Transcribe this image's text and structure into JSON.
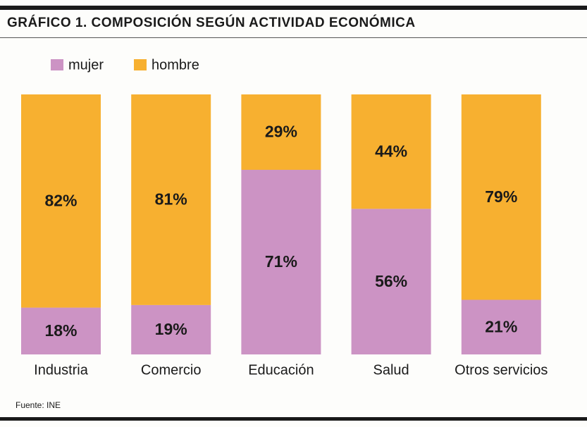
{
  "chart_data": {
    "type": "stacked_bar",
    "title": "GRÁFICO 1. COMPOSICIÓN SEGÚN ACTIVIDAD ECONÓMICA",
    "categories": [
      "Industria",
      "Comercio",
      "Educación",
      "Salud",
      "Otros servicios"
    ],
    "series": [
      {
        "name": "mujer",
        "color": "#cc93c4",
        "values": [
          18,
          19,
          71,
          56,
          21
        ],
        "value_labels": [
          "18%",
          "19%",
          "71%",
          "56%",
          "21%"
        ]
      },
      {
        "name": "hombre",
        "color": "#f7b030",
        "values": [
          82,
          81,
          29,
          44,
          79
        ],
        "value_labels": [
          "82%",
          "81%",
          "29%",
          "44%",
          "79%"
        ]
      }
    ],
    "legend": "top-left",
    "source": "Fuente: INE"
  }
}
